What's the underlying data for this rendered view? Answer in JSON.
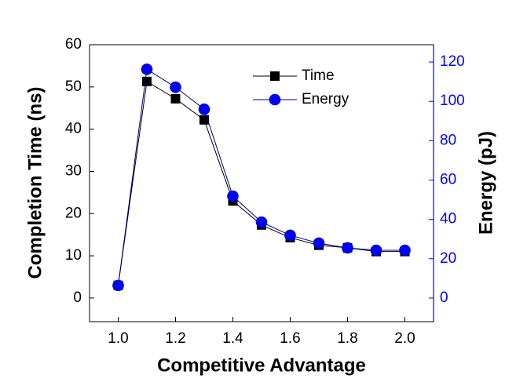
{
  "chart_data": {
    "type": "line",
    "x_label": "Competitive Advantage",
    "y_label": "Completion Time (ns)",
    "y2_label": "Energy (pJ)",
    "x": [
      1.0,
      1.1,
      1.2,
      1.3,
      1.4,
      1.5,
      1.6,
      1.7,
      1.8,
      1.9,
      2.0
    ],
    "series": [
      {
        "name": "Time",
        "color": "#000000",
        "marker": "square",
        "values": [
          3.0,
          51.3,
          47.2,
          42.2,
          23.0,
          17.3,
          14.3,
          12.5,
          11.9,
          11.0,
          11.0
        ]
      },
      {
        "name": "Energy",
        "color": "#0000ff",
        "marker": "circle",
        "axis": "y2",
        "values": [
          6.4,
          116.3,
          107.2,
          96.0,
          51.8,
          38.6,
          31.9,
          27.9,
          25.5,
          24.3,
          24.3
        ]
      }
    ],
    "xlim": [
      0.9,
      2.1
    ],
    "xticks": [
      {
        "value": 1.0,
        "label": "1.0"
      },
      1.2,
      1.4,
      1.6,
      1.8,
      {
        "value": 2.0,
        "label": "2.0"
      }
    ],
    "ylim": [
      -5.6,
      60
    ],
    "yticks": [
      0,
      10,
      20,
      30,
      40,
      50,
      60
    ],
    "y2lim": [
      -12,
      128.8
    ],
    "y2ticks": [
      0,
      20,
      40,
      60,
      80,
      100,
      120
    ],
    "y2_color": "#0000ff"
  }
}
